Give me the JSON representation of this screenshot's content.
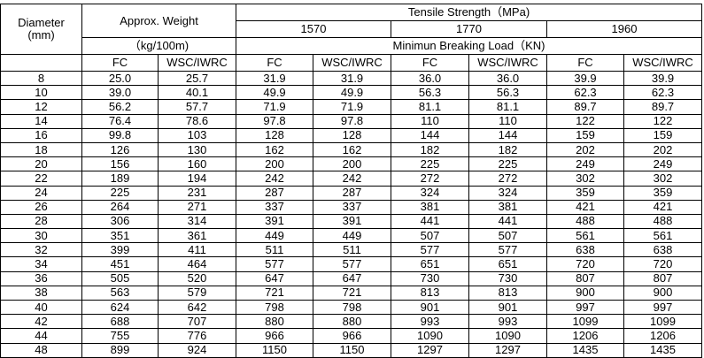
{
  "header": {
    "diameter": "Diameter",
    "diameter_unit": "(mm)",
    "weight": "Approx. Weight",
    "weight_unit": "（kg/100m)",
    "tensile": "Tensile Strength（MPa)",
    "grades": [
      "1570",
      "1770",
      "1960"
    ],
    "load": "Minimun Breaking Load（KN)",
    "subcols": [
      "FC",
      "WSC/IWRC",
      "FC",
      "WSC/IWRC",
      "FC",
      "WSC/IWRC",
      "FC",
      "WSC/IWRC"
    ]
  },
  "table": {
    "rows": [
      [
        "8",
        "25.0",
        "25.7",
        "31.9",
        "31.9",
        "36.0",
        "36.0",
        "39.9",
        "39.9"
      ],
      [
        "10",
        "39.0",
        "40.1",
        "49.9",
        "49.9",
        "56.3",
        "56.3",
        "62.3",
        "62.3"
      ],
      [
        "12",
        "56.2",
        "57.7",
        "71.9",
        "71.9",
        "81.1",
        "81.1",
        "89.7",
        "89.7"
      ],
      [
        "14",
        "76.4",
        "78.6",
        "97.8",
        "97.8",
        "110",
        "110",
        "122",
        "122"
      ],
      [
        "16",
        "99.8",
        "103",
        "128",
        "128",
        "144",
        "144",
        "159",
        "159"
      ],
      [
        "18",
        "126",
        "130",
        "162",
        "162",
        "182",
        "182",
        "202",
        "202"
      ],
      [
        "20",
        "156",
        "160",
        "200",
        "200",
        "225",
        "225",
        "249",
        "249"
      ],
      [
        "22",
        "189",
        "194",
        "242",
        "242",
        "272",
        "272",
        "302",
        "302"
      ],
      [
        "24",
        "225",
        "231",
        "287",
        "287",
        "324",
        "324",
        "359",
        "359"
      ],
      [
        "26",
        "264",
        "271",
        "337",
        "337",
        "381",
        "381",
        "421",
        "421"
      ],
      [
        "28",
        "306",
        "314",
        "391",
        "391",
        "441",
        "441",
        "488",
        "488"
      ],
      [
        "30",
        "351",
        "361",
        "449",
        "449",
        "507",
        "507",
        "561",
        "561"
      ],
      [
        "32",
        "399",
        "411",
        "511",
        "511",
        "577",
        "577",
        "638",
        "638"
      ],
      [
        "34",
        "451",
        "464",
        "577",
        "577",
        "651",
        "651",
        "720",
        "720"
      ],
      [
        "36",
        "505",
        "520",
        "647",
        "647",
        "730",
        "730",
        "807",
        "807"
      ],
      [
        "38",
        "563",
        "579",
        "721",
        "721",
        "813",
        "813",
        "900",
        "900"
      ],
      [
        "40",
        "624",
        "642",
        "798",
        "798",
        "901",
        "901",
        "997",
        "997"
      ],
      [
        "42",
        "688",
        "707",
        "880",
        "880",
        "993",
        "993",
        "1099",
        "1099"
      ],
      [
        "44",
        "755",
        "776",
        "966",
        "966",
        "1090",
        "1090",
        "1206",
        "1206"
      ],
      [
        "48",
        "899",
        "924",
        "1150",
        "1150",
        "1297",
        "1297",
        "1435",
        "1435"
      ]
    ]
  }
}
